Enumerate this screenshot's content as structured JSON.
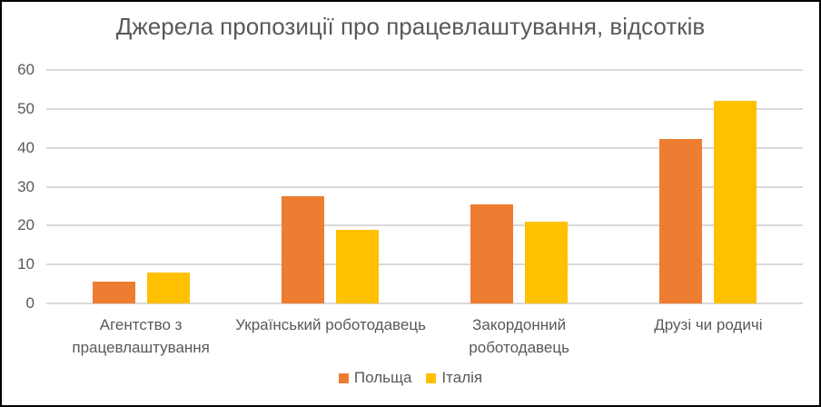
{
  "window": {
    "background_color": "#FFFFFF",
    "border_color": "#000000",
    "text_color": "#595959"
  },
  "chart_data": {
    "type": "bar",
    "title": "Джерела пропозиції про працевлаштування, відсотків",
    "categories": [
      "Агентство з працевлаштування",
      "Український роботодавець",
      "Закордонний роботодавець",
      "Друзі чи родичі"
    ],
    "category_label_lines": [
      [
        "Агентство з",
        "працевлаштування"
      ],
      [
        "Український роботодавець"
      ],
      [
        "Закордонний",
        "роботодавець"
      ],
      [
        "Друзі чи родичі"
      ]
    ],
    "series": [
      {
        "name": "Польща",
        "color": "#ED7D31",
        "values": [
          5.5,
          27.5,
          25.5,
          42.2
        ]
      },
      {
        "name": "Італія",
        "color": "#FFC000",
        "values": [
          8,
          19,
          21,
          52
        ]
      }
    ],
    "xlabel": "",
    "ylabel": "",
    "ylim": [
      0,
      60
    ],
    "ytick_step": 10,
    "yticks": [
      0,
      10,
      20,
      30,
      40,
      50,
      60
    ],
    "grid": true,
    "gridline_color": "#D9D9D9",
    "legend_position": "bottom"
  }
}
